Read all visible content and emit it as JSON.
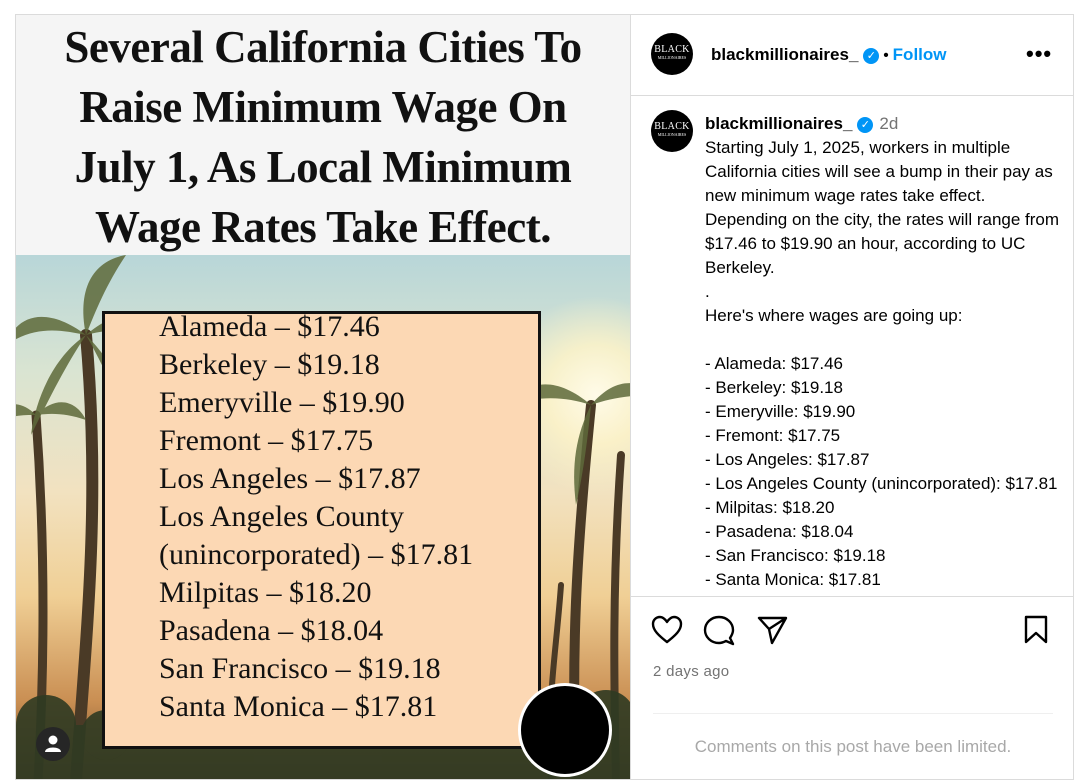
{
  "post": {
    "headline_lines": [
      "Several California Cities To",
      "Raise Minimum Wage On",
      "July 1, As Local Minimum",
      "Wage Rates Take Effect."
    ],
    "price_lines": [
      "Alameda – $17.46",
      "Berkeley – $19.18",
      "Emeryville – $19.90",
      "Fremont – $17.75",
      "Los Angeles – $17.87",
      "Los Angeles County",
      "(unincorporated) – $17.81",
      "Milpitas – $18.20",
      "Pasadena – $18.04",
      "San Francisco – $19.18",
      "Santa Monica – $17.81"
    ]
  },
  "header": {
    "logo_text": "BLACK",
    "logo_sub": "MILLIONAIRES",
    "username": "blackmillionaires_",
    "dot": "•",
    "follow_label": "Follow",
    "more_label": "•••"
  },
  "caption": {
    "username": "blackmillionaires_",
    "time": "2d",
    "intro": "Starting July 1, 2025, workers in multiple California cities will see a bump in their pay as new minimum wage rates take effect. Depending on the city, the rates will range from $17.46 to $19.90 an hour, according to UC Berkeley.",
    "dot_line": ".",
    "list_heading": "Here's where wages are going up:",
    "list": [
      "- Alameda: $17.46",
      "- Berkeley: $19.18",
      "- Emeryville: $19.90",
      "- Fremont: $17.75",
      "- Los Angeles: $17.87",
      "- Los Angeles County (unincorporated): $17.81",
      "- Milpitas: $18.20",
      "- Pasadena: $18.04",
      "- San Francisco: $19.18",
      "- Santa Monica: $17.81"
    ]
  },
  "footer": {
    "time_ago": "2 days ago",
    "comments_limited": "Comments on this post have been limited."
  },
  "icons": {
    "like": "heart-icon",
    "comment": "comment-icon",
    "share": "share-icon",
    "save": "bookmark-icon",
    "verified": "verified-badge-icon",
    "verified_color": "#0095f6"
  }
}
